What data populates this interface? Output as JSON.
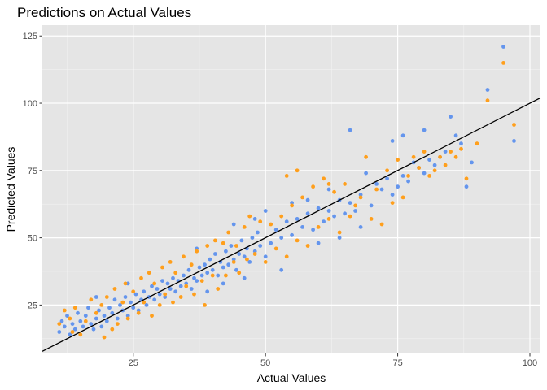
{
  "chart_data": {
    "type": "scatter",
    "title": "Predictions on Actual Values",
    "xlabel": "Actual Values",
    "ylabel": "Predicted Values",
    "xlim": [
      7.8,
      102
    ],
    "ylim": [
      7,
      129
    ],
    "xticks": [
      25,
      50,
      75,
      100
    ],
    "yticks": [
      25,
      50,
      75,
      100,
      125
    ],
    "xtick_labels": [
      "25",
      "50",
      "75",
      "100"
    ],
    "ytick_labels": [
      "25",
      "50",
      "75",
      "100",
      "125"
    ],
    "grid": true,
    "background": "#e5e5e5",
    "reference_line": {
      "type": "identity",
      "slope": 1,
      "intercept": 0,
      "color": "#000000"
    },
    "series": [
      {
        "color": "#6495ED",
        "points": [
          [
            11,
            15
          ],
          [
            11.5,
            19
          ],
          [
            12,
            17
          ],
          [
            12.5,
            21
          ],
          [
            13,
            14
          ],
          [
            13.5,
            18
          ],
          [
            14,
            16
          ],
          [
            14.5,
            22
          ],
          [
            15,
            19
          ],
          [
            15.5,
            17
          ],
          [
            16,
            21
          ],
          [
            16.5,
            24
          ],
          [
            17,
            18
          ],
          [
            17.5,
            16
          ],
          [
            18,
            20
          ],
          [
            18.5,
            23
          ],
          [
            19,
            17
          ],
          [
            19.5,
            21
          ],
          [
            20,
            19
          ],
          [
            20.5,
            24
          ],
          [
            21,
            22
          ],
          [
            21.5,
            27
          ],
          [
            22,
            20
          ],
          [
            22.5,
            25
          ],
          [
            23,
            23
          ],
          [
            23.5,
            28
          ],
          [
            24,
            21
          ],
          [
            24.5,
            26
          ],
          [
            25,
            24
          ],
          [
            25.5,
            29
          ],
          [
            26,
            23
          ],
          [
            26.5,
            27
          ],
          [
            27,
            30
          ],
          [
            27.5,
            25
          ],
          [
            28,
            28
          ],
          [
            28.5,
            32
          ],
          [
            29,
            27
          ],
          [
            29.5,
            31
          ],
          [
            30,
            29
          ],
          [
            30.5,
            34
          ],
          [
            31,
            28
          ],
          [
            31.5,
            33
          ],
          [
            32,
            31
          ],
          [
            32.5,
            35
          ],
          [
            33,
            30
          ],
          [
            33.5,
            34
          ],
          [
            34,
            32
          ],
          [
            34.5,
            36
          ],
          [
            35,
            33
          ],
          [
            35.5,
            38
          ],
          [
            36,
            31
          ],
          [
            36.5,
            35
          ],
          [
            37,
            34
          ],
          [
            37.5,
            39
          ],
          [
            38,
            36
          ],
          [
            38.5,
            40
          ],
          [
            39,
            37
          ],
          [
            39.5,
            42
          ],
          [
            40,
            38
          ],
          [
            40.5,
            44
          ],
          [
            41,
            36
          ],
          [
            41.5,
            41
          ],
          [
            42,
            39
          ],
          [
            42.5,
            45
          ],
          [
            43,
            40
          ],
          [
            43.5,
            47
          ],
          [
            44,
            42
          ],
          [
            44.5,
            38
          ],
          [
            45,
            44
          ],
          [
            45.5,
            49
          ],
          [
            46,
            43
          ],
          [
            46.5,
            46
          ],
          [
            47,
            41
          ],
          [
            47.5,
            50
          ],
          [
            48,
            45
          ],
          [
            48.5,
            52
          ],
          [
            49,
            47
          ],
          [
            50,
            43
          ],
          [
            51,
            48
          ],
          [
            52,
            53
          ],
          [
            53,
            50
          ],
          [
            54,
            56
          ],
          [
            55,
            51
          ],
          [
            56,
            57
          ],
          [
            57,
            54
          ],
          [
            58,
            59
          ],
          [
            59,
            53
          ],
          [
            60,
            61
          ],
          [
            61,
            56
          ],
          [
            62,
            60
          ],
          [
            63,
            58
          ],
          [
            64,
            64
          ],
          [
            65,
            59
          ],
          [
            66,
            63
          ],
          [
            67,
            60
          ],
          [
            68,
            66
          ],
          [
            69,
            74
          ],
          [
            70,
            62
          ],
          [
            71,
            70
          ],
          [
            72,
            68
          ],
          [
            73,
            72
          ],
          [
            74,
            66
          ],
          [
            75,
            69
          ],
          [
            76,
            73
          ],
          [
            77,
            71
          ],
          [
            78,
            78
          ],
          [
            79,
            76
          ],
          [
            80,
            74
          ],
          [
            81,
            79
          ],
          [
            82,
            77
          ],
          [
            83,
            80
          ],
          [
            84,
            82
          ],
          [
            85,
            95
          ],
          [
            86,
            88
          ],
          [
            87,
            85
          ],
          [
            88,
            69
          ],
          [
            89,
            78
          ],
          [
            92,
            105
          ],
          [
            95,
            121
          ],
          [
            97,
            86
          ],
          [
            37,
            46
          ],
          [
            39,
            30
          ],
          [
            42,
            33
          ],
          [
            44,
            55
          ],
          [
            46,
            35
          ],
          [
            48,
            57
          ],
          [
            50,
            60
          ],
          [
            53,
            38
          ],
          [
            55,
            63
          ],
          [
            58,
            64
          ],
          [
            60,
            48
          ],
          [
            62,
            68
          ],
          [
            64,
            50
          ],
          [
            66,
            90
          ],
          [
            68,
            54
          ],
          [
            74,
            86
          ],
          [
            76,
            88
          ],
          [
            80,
            90
          ],
          [
            24,
            33
          ],
          [
            18,
            28
          ]
        ]
      },
      {
        "color": "#FF9F1C",
        "points": [
          [
            11,
            18
          ],
          [
            12,
            23
          ],
          [
            13,
            20
          ],
          [
            13.5,
            15
          ],
          [
            14,
            24
          ],
          [
            15,
            14
          ],
          [
            16,
            19
          ],
          [
            17,
            27
          ],
          [
            18,
            22
          ],
          [
            19,
            25
          ],
          [
            19.5,
            13
          ],
          [
            20,
            28
          ],
          [
            21,
            16
          ],
          [
            21.5,
            31
          ],
          [
            22,
            18
          ],
          [
            23,
            26
          ],
          [
            23.5,
            33
          ],
          [
            24,
            20
          ],
          [
            25,
            30
          ],
          [
            26,
            22
          ],
          [
            26.5,
            35
          ],
          [
            27,
            26
          ],
          [
            28,
            37
          ],
          [
            28.5,
            21
          ],
          [
            29,
            33
          ],
          [
            30,
            25
          ],
          [
            30.5,
            39
          ],
          [
            31,
            29
          ],
          [
            32,
            41
          ],
          [
            32.5,
            26
          ],
          [
            33,
            37
          ],
          [
            34,
            28
          ],
          [
            34.5,
            43
          ],
          [
            35,
            32
          ],
          [
            36,
            40
          ],
          [
            36.5,
            29
          ],
          [
            37,
            45
          ],
          [
            38,
            34
          ],
          [
            38.5,
            25
          ],
          [
            39,
            47
          ],
          [
            40,
            36
          ],
          [
            40.5,
            49
          ],
          [
            41,
            31
          ],
          [
            42,
            48
          ],
          [
            42.5,
            36
          ],
          [
            43,
            52
          ],
          [
            44,
            41
          ],
          [
            44.5,
            47
          ],
          [
            45,
            37
          ],
          [
            46,
            54
          ],
          [
            46.5,
            42
          ],
          [
            47,
            58
          ],
          [
            48,
            44
          ],
          [
            49,
            56
          ],
          [
            50,
            41
          ],
          [
            51,
            55
          ],
          [
            52,
            46
          ],
          [
            53,
            58
          ],
          [
            54,
            43
          ],
          [
            55,
            62
          ],
          [
            56,
            49
          ],
          [
            57,
            65
          ],
          [
            58,
            47
          ],
          [
            59,
            69
          ],
          [
            60,
            54
          ],
          [
            61,
            72
          ],
          [
            62,
            57
          ],
          [
            63,
            67
          ],
          [
            64,
            52
          ],
          [
            65,
            70
          ],
          [
            66,
            58
          ],
          [
            67,
            62
          ],
          [
            68,
            65
          ],
          [
            69,
            80
          ],
          [
            70,
            57
          ],
          [
            71,
            68
          ],
          [
            72,
            55
          ],
          [
            73,
            75
          ],
          [
            74,
            63
          ],
          [
            75,
            79
          ],
          [
            76,
            65
          ],
          [
            77,
            73
          ],
          [
            78,
            80
          ],
          [
            79,
            76
          ],
          [
            80,
            82
          ],
          [
            81,
            73
          ],
          [
            82,
            75
          ],
          [
            83,
            80
          ],
          [
            84,
            77
          ],
          [
            85,
            82
          ],
          [
            86,
            80
          ],
          [
            87,
            83
          ],
          [
            88,
            72
          ],
          [
            90,
            85
          ],
          [
            92,
            101
          ],
          [
            95,
            115
          ],
          [
            97,
            92
          ],
          [
            54,
            73
          ],
          [
            56,
            75
          ],
          [
            62,
            70
          ]
        ]
      }
    ]
  }
}
